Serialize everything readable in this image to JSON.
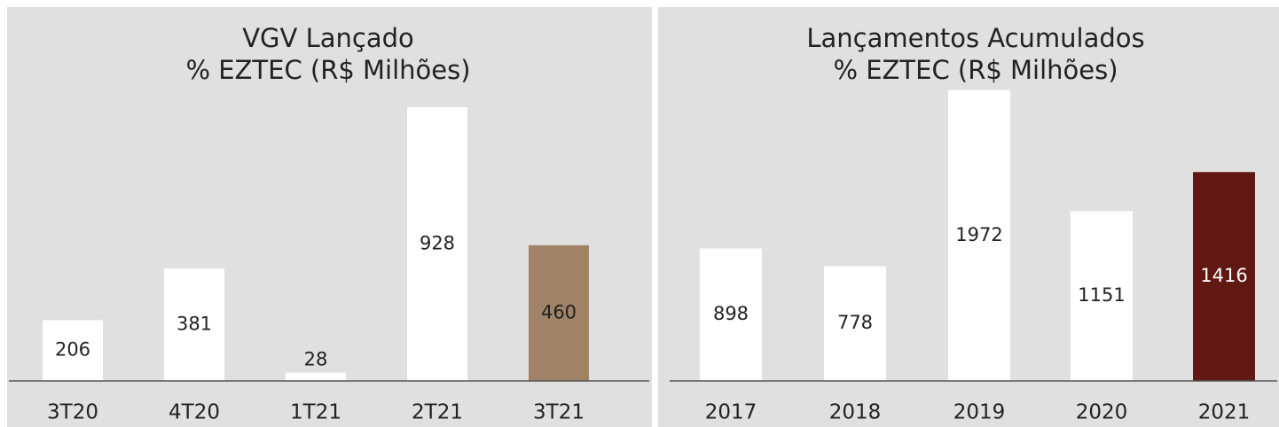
{
  "chart_data": [
    {
      "type": "bar",
      "title_lines": [
        "VGV Lançado",
        "% EZTEC (R$ Milhões)"
      ],
      "categories": [
        "3T20",
        "4T20",
        "1T21",
        "2T21",
        "3T21"
      ],
      "values": [
        206,
        381,
        28,
        928,
        460
      ],
      "colors": [
        "#ffffff",
        "#ffffff",
        "#ffffff",
        "#ffffff",
        "#a08266"
      ],
      "ylim": [
        0,
        1000
      ]
    },
    {
      "type": "bar",
      "title_lines": [
        "Lançamentos Acumulados",
        "% EZTEC (R$ Milhões)"
      ],
      "categories": [
        "2017",
        "2018",
        "2019",
        "2020",
        "2021"
      ],
      "values": [
        898,
        778,
        1972,
        1151,
        1416
      ],
      "colors": [
        "#ffffff",
        "#ffffff",
        "#ffffff",
        "#ffffff",
        "#611812"
      ],
      "ylim": [
        0,
        2000
      ]
    }
  ]
}
